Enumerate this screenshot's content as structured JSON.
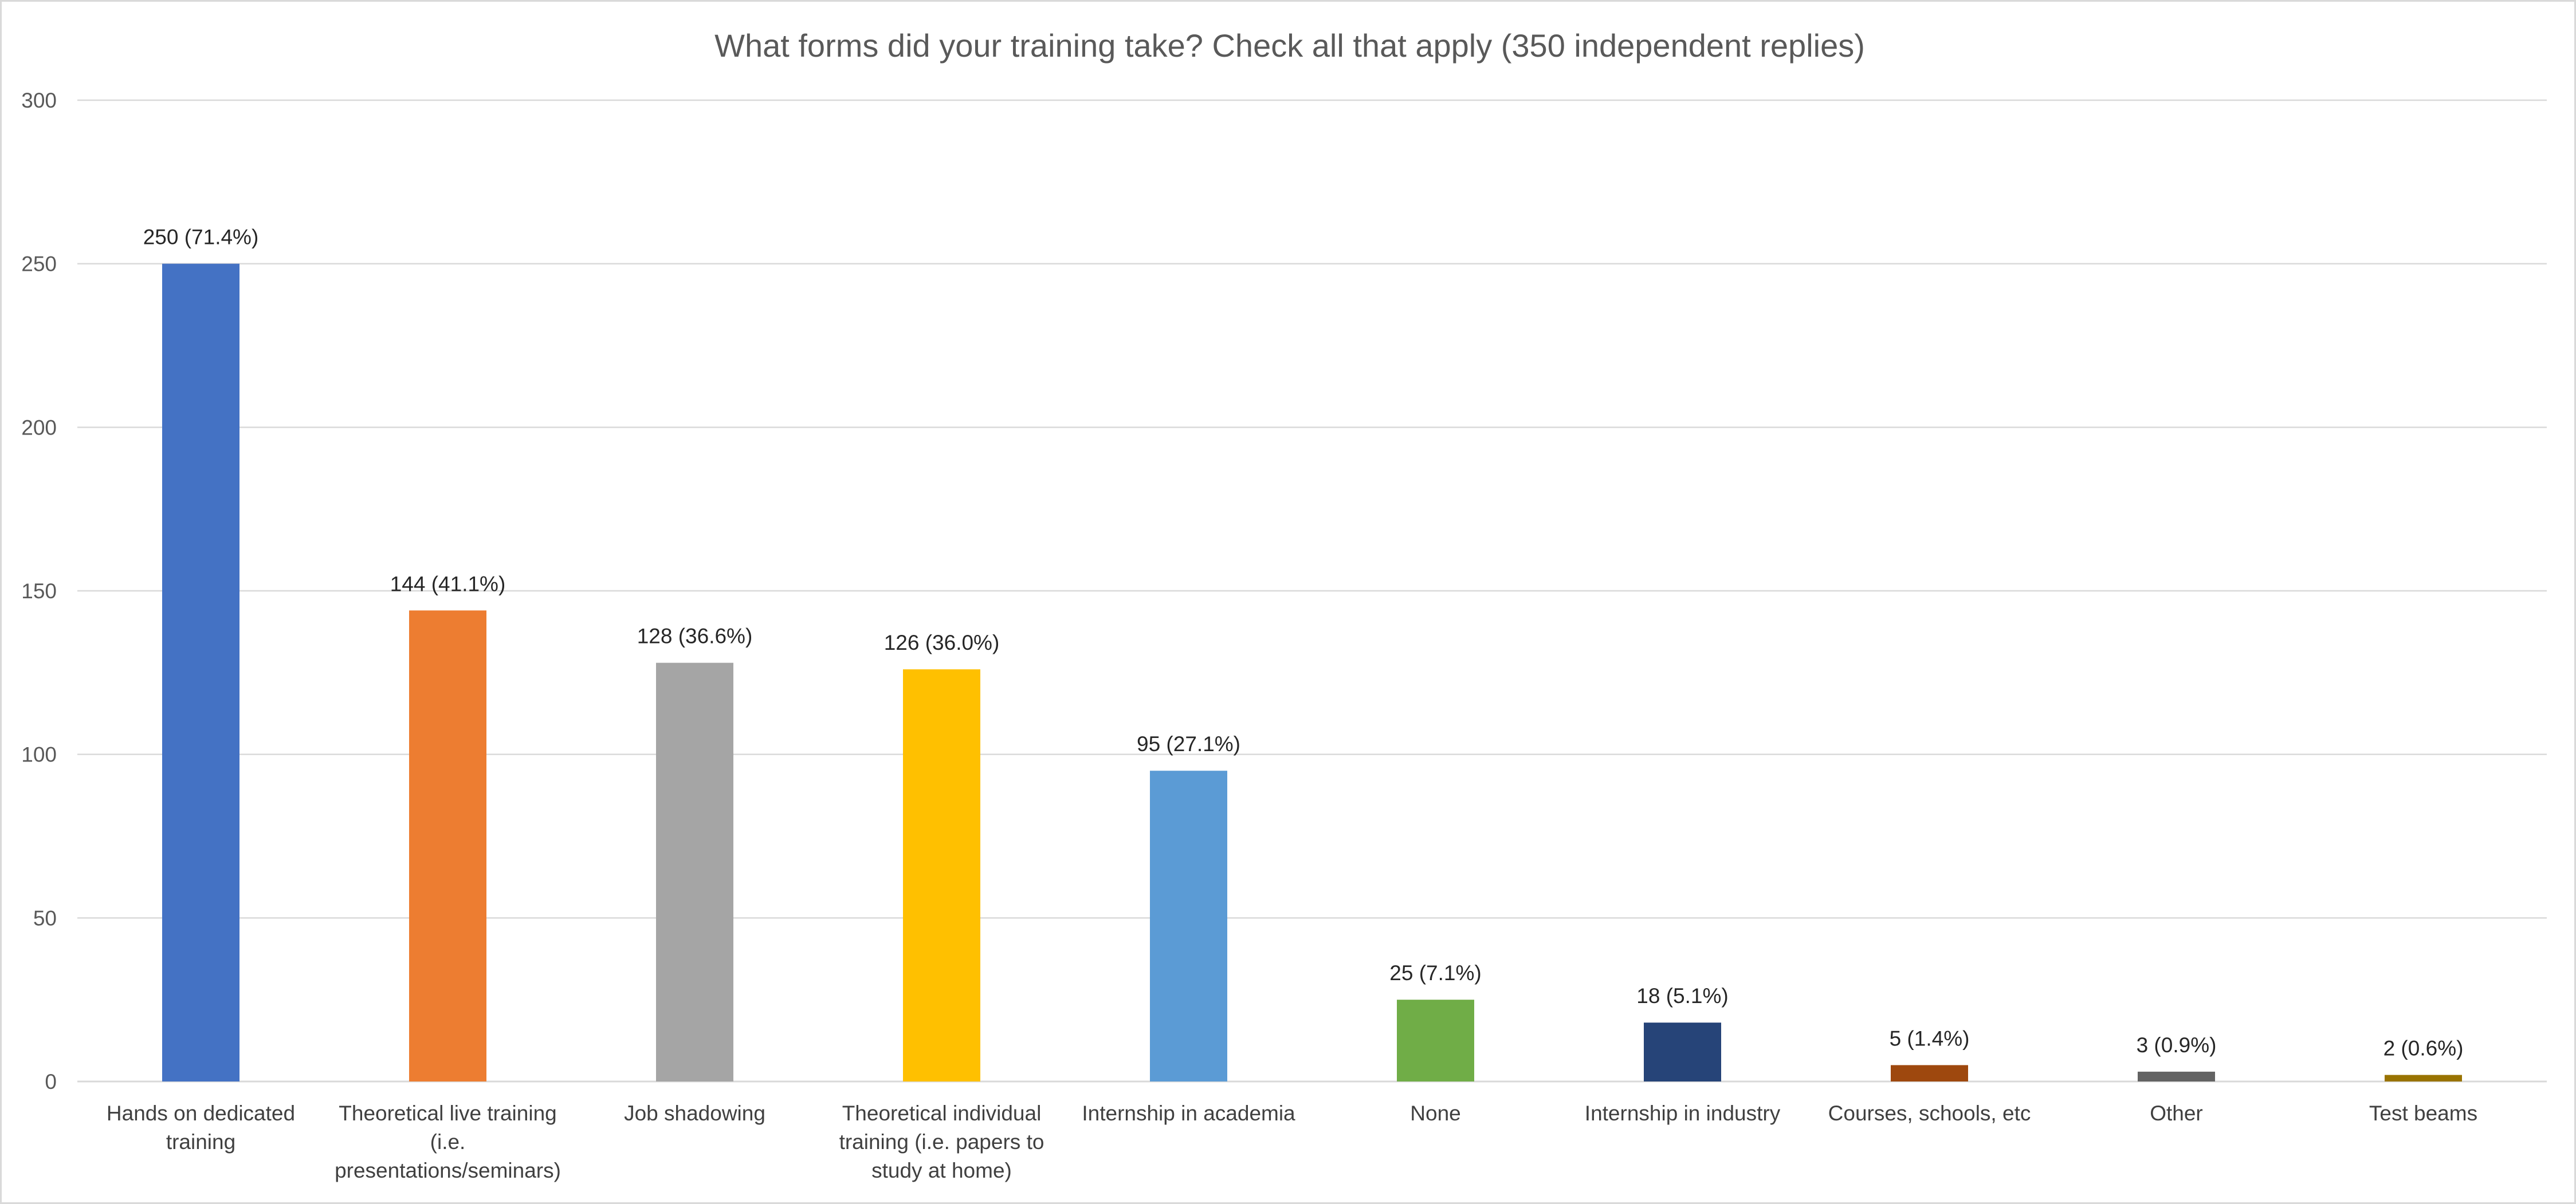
{
  "chart_data": {
    "type": "bar",
    "title": "What forms did your training take? Check all that apply (350 independent replies)",
    "xlabel": "",
    "ylabel": "",
    "ylim": [
      0,
      300
    ],
    "yticks": [
      "0",
      "50",
      "100",
      "150",
      "200",
      "250",
      "300"
    ],
    "grid": true,
    "legend": "none",
    "categories": [
      [
        "Hands on dedicated",
        "training"
      ],
      [
        "Theoretical live training",
        "(i.e.",
        "presentations/seminars)"
      ],
      [
        "Job shadowing"
      ],
      [
        "Theoretical individual",
        "training (i.e. papers to",
        "study at home)"
      ],
      [
        "Internship in academia"
      ],
      [
        "None"
      ],
      [
        "Internship in industry"
      ],
      [
        "Courses, schools, etc"
      ],
      [
        "Other"
      ],
      [
        "Test beams"
      ]
    ],
    "values": [
      250,
      144,
      128,
      126,
      95,
      25,
      18,
      5,
      3,
      2
    ],
    "data_labels": [
      "250 (71.4%)",
      "144 (41.1%)",
      "128 (36.6%)",
      "126 (36.0%)",
      "95 (27.1%)",
      "25 (7.1%)",
      "18 (5.1%)",
      "5 (1.4%)",
      "3 (0.9%)",
      "2 (0.6%)"
    ],
    "colors": [
      "#4472C4",
      "#ED7D31",
      "#A5A5A5",
      "#FFC000",
      "#5B9BD5",
      "#70AD47",
      "#264478",
      "#9E480E",
      "#636363",
      "#997300"
    ]
  }
}
